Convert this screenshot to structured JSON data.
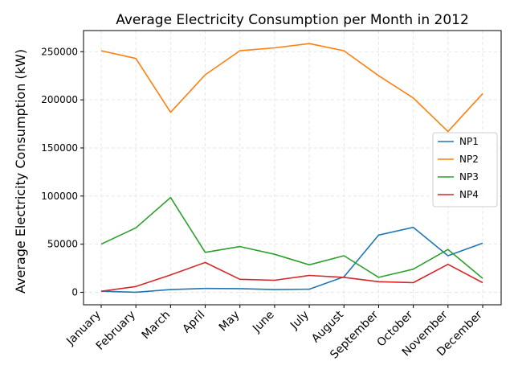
{
  "chart_data": {
    "type": "line",
    "title": "Average Electricity Consumption per Month in 2012",
    "xlabel": "",
    "ylabel": "Average Electricity Consumption (kW)",
    "categories": [
      "January",
      "February",
      "March",
      "April",
      "May",
      "June",
      "July",
      "August",
      "September",
      "October",
      "November",
      "December"
    ],
    "ylim": [
      -13000,
      272000
    ],
    "yticks": [
      0,
      50000,
      100000,
      150000,
      200000,
      250000
    ],
    "grid": true,
    "legend_position": "center-right",
    "series": [
      {
        "name": "NP1",
        "color": "#1f77b4",
        "values": [
          1000,
          0,
          2800,
          4000,
          3800,
          2800,
          3200,
          16000,
          59500,
          67500,
          38000,
          51000
        ]
      },
      {
        "name": "NP2",
        "color": "#ff7f0e",
        "values": [
          251000,
          243000,
          187000,
          226000,
          251000,
          254000,
          258500,
          251000,
          225000,
          202000,
          167000,
          206500
        ]
      },
      {
        "name": "NP3",
        "color": "#2ca02c",
        "values": [
          50000,
          67000,
          98500,
          41500,
          47500,
          39500,
          28500,
          38000,
          15500,
          24000,
          44500,
          14500
        ]
      },
      {
        "name": "NP4",
        "color": "#d62728",
        "values": [
          1000,
          6000,
          18000,
          31000,
          13500,
          12500,
          17500,
          15500,
          11000,
          10000,
          29000,
          10000
        ]
      }
    ]
  }
}
